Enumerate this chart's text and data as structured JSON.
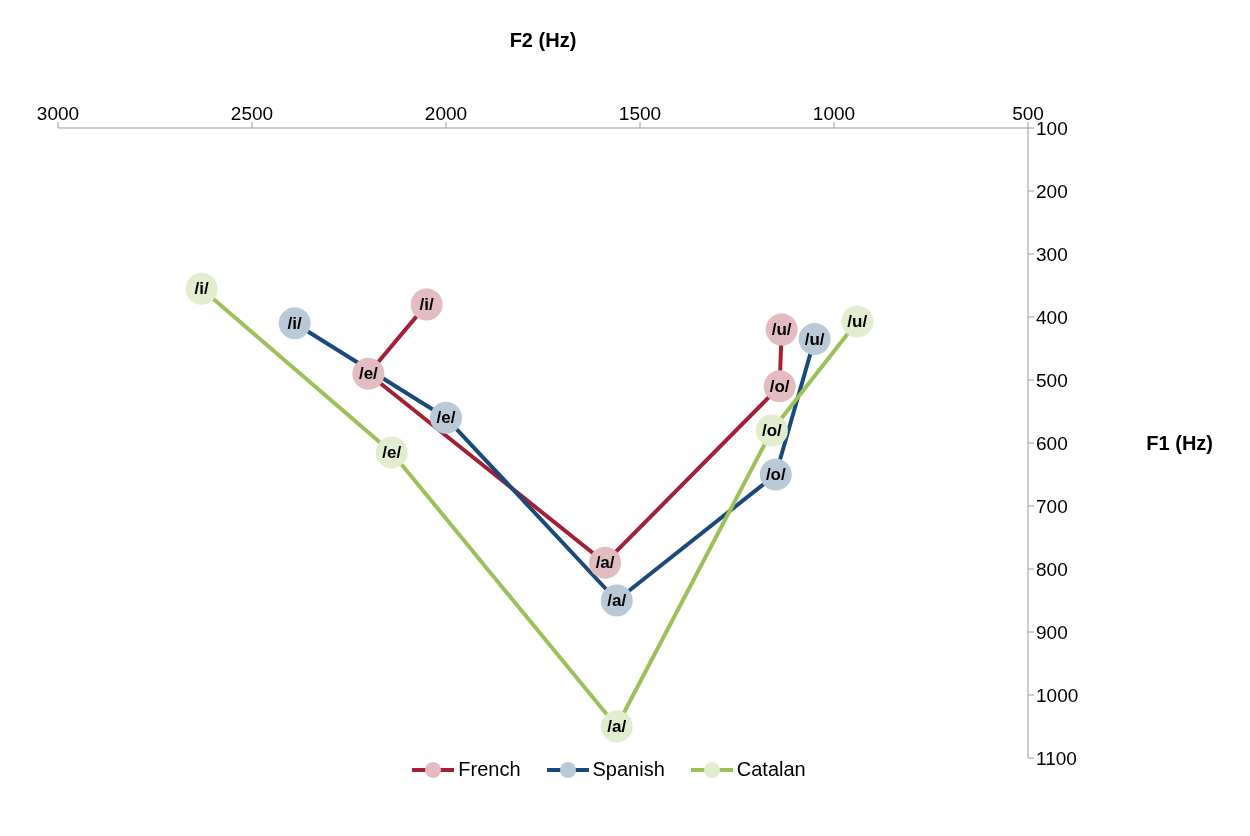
{
  "chart_data": {
    "type": "line",
    "xlabel": "F2 (Hz)",
    "ylabel": "F1 (Hz)",
    "xlim": [
      3000,
      500
    ],
    "xticks": [
      3000,
      2500,
      2000,
      1500,
      1000,
      500
    ],
    "ylim": [
      1100,
      100
    ],
    "yticks": [
      100,
      200,
      300,
      400,
      500,
      600,
      700,
      800,
      900,
      1000,
      1100
    ],
    "grid": false,
    "legend": "bottom",
    "marker": "circle",
    "line_style": "solid",
    "series": [
      {
        "name": "French",
        "color": "#a31f34",
        "x": [
          2050,
          2200,
          1590,
          1140,
          1135
        ],
        "values": [
          380,
          490,
          790,
          510,
          420
        ],
        "value_labels": [
          "/i/",
          "/e/",
          "/a/",
          "/o/",
          "/u/"
        ]
      },
      {
        "name": "Spanish",
        "color": "#1a4a7a",
        "x": [
          2390,
          2000,
          1560,
          1150,
          1050
        ],
        "values": [
          410,
          560,
          850,
          650,
          435
        ],
        "value_labels": [
          "/i/",
          "/e/",
          "/a/",
          "/o/",
          "/u/"
        ]
      },
      {
        "name": "Catalan",
        "color": "#9dc05a",
        "x": [
          2630,
          2140,
          1560,
          1160,
          940
        ],
        "values": [
          355,
          615,
          1050,
          580,
          407
        ],
        "value_labels": [
          "/i/",
          "/e/",
          "/a/",
          "/o/",
          "/u/"
        ]
      }
    ]
  }
}
